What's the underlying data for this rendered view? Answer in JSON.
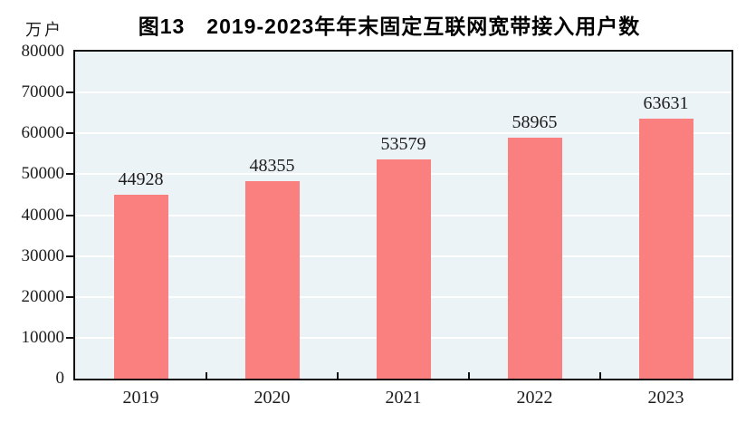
{
  "chart_data": {
    "type": "bar",
    "title": "图13　2019-2023年年末固定互联网宽带接入用户数",
    "ylabel": "万户",
    "xlabel": "",
    "categories": [
      "2019",
      "2020",
      "2021",
      "2022",
      "2023"
    ],
    "values": [
      44928,
      48355,
      53579,
      58965,
      63631
    ],
    "data_labels": [
      "44928",
      "48355",
      "53579",
      "58965",
      "63631"
    ],
    "ylim": [
      0,
      80000
    ],
    "ytick_step": 10000,
    "yticks": [
      "0",
      "10000",
      "20000",
      "30000",
      "40000",
      "50000",
      "60000",
      "70000",
      "80000"
    ],
    "grid": "horizontal",
    "legend": "none",
    "colors": {
      "bar": "#fa7f7f",
      "plot_background": "#ecf3f7",
      "gridline": "#ffffff",
      "axis": "#111111",
      "text": "#1d1d1d"
    }
  }
}
